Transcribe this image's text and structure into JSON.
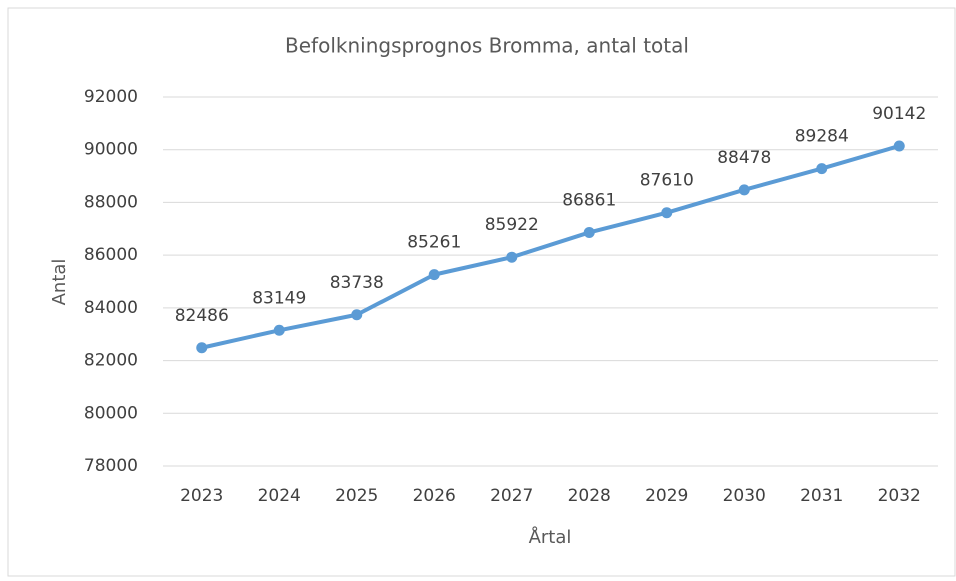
{
  "chart_data": {
    "type": "line",
    "title": "Befolkningsprognos Bromma, antal total",
    "x_label": "Årtal",
    "y_label": "Antal",
    "categories": [
      "2023",
      "2024",
      "2025",
      "2026",
      "2027",
      "2028",
      "2029",
      "2030",
      "2031",
      "2032"
    ],
    "series": [
      {
        "name": "Antal",
        "color": "#5b9bd5",
        "values": [
          82486,
          83149,
          83738,
          85261,
          85922,
          86861,
          87610,
          88478,
          89284,
          90142
        ]
      }
    ],
    "ylim": [
      78000,
      92000
    ],
    "yticks": [
      78000,
      80000,
      82000,
      84000,
      86000,
      88000,
      90000,
      92000
    ],
    "grid": true
  }
}
